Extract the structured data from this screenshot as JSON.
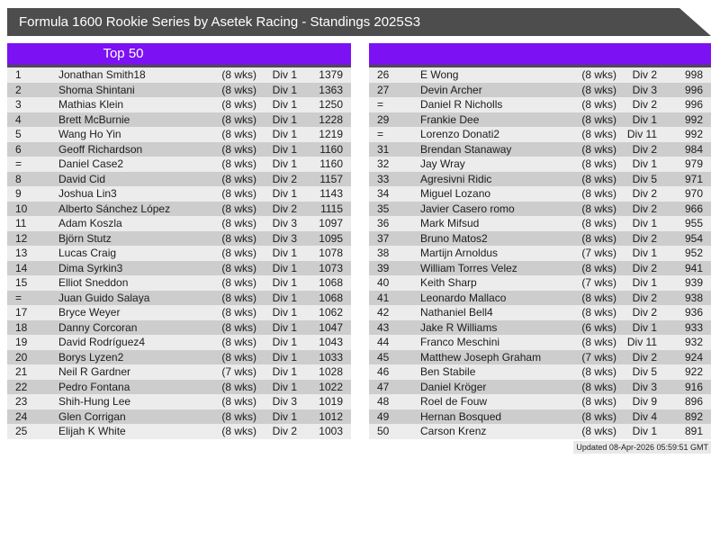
{
  "banner": {
    "title": "Formula 1600 Rookie Series by Asetek Racing - Standings 2025S3"
  },
  "colors": {
    "banner_bg": "#4d4d4d",
    "header_bg": "#7c11f3",
    "row_light": "#ececec",
    "row_dark": "#cdcdcd"
  },
  "tables": [
    {
      "header": "Top 50",
      "rows": [
        {
          "pos": "1",
          "name": "Jonathan Smith18",
          "weeks": "(8 wks)",
          "division": "Div 1",
          "points": "1379"
        },
        {
          "pos": "2",
          "name": "Shoma Shintani",
          "weeks": "(8 wks)",
          "division": "Div 1",
          "points": "1363"
        },
        {
          "pos": "3",
          "name": "Mathias Klein",
          "weeks": "(8 wks)",
          "division": "Div 1",
          "points": "1250"
        },
        {
          "pos": "4",
          "name": "Brett McBurnie",
          "weeks": "(8 wks)",
          "division": "Div 1",
          "points": "1228"
        },
        {
          "pos": "5",
          "name": "Wang Ho Yin",
          "weeks": "(8 wks)",
          "division": "Div 1",
          "points": "1219"
        },
        {
          "pos": "6",
          "name": "Geoff Richardson",
          "weeks": "(8 wks)",
          "division": "Div 1",
          "points": "1160"
        },
        {
          "pos": "=",
          "name": "Daniel Case2",
          "weeks": "(8 wks)",
          "division": "Div 1",
          "points": "1160"
        },
        {
          "pos": "8",
          "name": "David Cid",
          "weeks": "(8 wks)",
          "division": "Div 2",
          "points": "1157"
        },
        {
          "pos": "9",
          "name": "Joshua Lin3",
          "weeks": "(8 wks)",
          "division": "Div 1",
          "points": "1143"
        },
        {
          "pos": "10",
          "name": "Alberto Sánchez López",
          "weeks": "(8 wks)",
          "division": "Div 2",
          "points": "1115"
        },
        {
          "pos": "11",
          "name": "Adam Koszla",
          "weeks": "(8 wks)",
          "division": "Div 3",
          "points": "1097"
        },
        {
          "pos": "12",
          "name": "Björn Stutz",
          "weeks": "(8 wks)",
          "division": "Div 3",
          "points": "1095"
        },
        {
          "pos": "13",
          "name": "Lucas Craig",
          "weeks": "(8 wks)",
          "division": "Div 1",
          "points": "1078"
        },
        {
          "pos": "14",
          "name": "Dima Syrkin3",
          "weeks": "(8 wks)",
          "division": "Div 1",
          "points": "1073"
        },
        {
          "pos": "15",
          "name": "Elliot Sneddon",
          "weeks": "(8 wks)",
          "division": "Div 1",
          "points": "1068"
        },
        {
          "pos": "=",
          "name": "Juan Guido Salaya",
          "weeks": "(8 wks)",
          "division": "Div 1",
          "points": "1068"
        },
        {
          "pos": "17",
          "name": "Bryce Weyer",
          "weeks": "(8 wks)",
          "division": "Div 1",
          "points": "1062"
        },
        {
          "pos": "18",
          "name": "Danny Corcoran",
          "weeks": "(8 wks)",
          "division": "Div 1",
          "points": "1047"
        },
        {
          "pos": "19",
          "name": "David Rodríguez4",
          "weeks": "(8 wks)",
          "division": "Div 1",
          "points": "1043"
        },
        {
          "pos": "20",
          "name": "Borys Lyzen2",
          "weeks": "(8 wks)",
          "division": "Div 1",
          "points": "1033"
        },
        {
          "pos": "21",
          "name": "Neil R Gardner",
          "weeks": "(7 wks)",
          "division": "Div 1",
          "points": "1028"
        },
        {
          "pos": "22",
          "name": "Pedro Fontana",
          "weeks": "(8 wks)",
          "division": "Div 1",
          "points": "1022"
        },
        {
          "pos": "23",
          "name": "Shih-Hung Lee",
          "weeks": "(8 wks)",
          "division": "Div 3",
          "points": "1019"
        },
        {
          "pos": "24",
          "name": "Glen Corrigan",
          "weeks": "(8 wks)",
          "division": "Div 1",
          "points": "1012"
        },
        {
          "pos": "25",
          "name": "Elijah K White",
          "weeks": "(8 wks)",
          "division": "Div 2",
          "points": "1003"
        }
      ]
    },
    {
      "header": "",
      "rows": [
        {
          "pos": "26",
          "name": "E Wong",
          "weeks": "(8 wks)",
          "division": "Div 2",
          "points": "998"
        },
        {
          "pos": "27",
          "name": "Devin Archer",
          "weeks": "(8 wks)",
          "division": "Div 3",
          "points": "996"
        },
        {
          "pos": "=",
          "name": "Daniel R Nicholls",
          "weeks": "(8 wks)",
          "division": "Div 2",
          "points": "996"
        },
        {
          "pos": "29",
          "name": "Frankie Dee",
          "weeks": "(8 wks)",
          "division": "Div 1",
          "points": "992"
        },
        {
          "pos": "=",
          "name": "Lorenzo Donati2",
          "weeks": "(8 wks)",
          "division": "Div 11",
          "points": "992"
        },
        {
          "pos": "31",
          "name": "Brendan Stanaway",
          "weeks": "(8 wks)",
          "division": "Div 2",
          "points": "984"
        },
        {
          "pos": "32",
          "name": "Jay Wray",
          "weeks": "(8 wks)",
          "division": "Div 1",
          "points": "979"
        },
        {
          "pos": "33",
          "name": "Agresivni Ridic",
          "weeks": "(8 wks)",
          "division": "Div 5",
          "points": "971"
        },
        {
          "pos": "34",
          "name": "Miguel Lozano",
          "weeks": "(8 wks)",
          "division": "Div 2",
          "points": "970"
        },
        {
          "pos": "35",
          "name": "Javier Casero romo",
          "weeks": "(8 wks)",
          "division": "Div 2",
          "points": "966"
        },
        {
          "pos": "36",
          "name": "Mark Mifsud",
          "weeks": "(8 wks)",
          "division": "Div 1",
          "points": "955"
        },
        {
          "pos": "37",
          "name": "Bruno Matos2",
          "weeks": "(8 wks)",
          "division": "Div 2",
          "points": "954"
        },
        {
          "pos": "38",
          "name": "Martijn Arnoldus",
          "weeks": "(7 wks)",
          "division": "Div 1",
          "points": "952"
        },
        {
          "pos": "39",
          "name": "William Torres Velez",
          "weeks": "(8 wks)",
          "division": "Div 2",
          "points": "941"
        },
        {
          "pos": "40",
          "name": "Keith Sharp",
          "weeks": "(7 wks)",
          "division": "Div 1",
          "points": "939"
        },
        {
          "pos": "41",
          "name": "Leonardo Mallaco",
          "weeks": "(8 wks)",
          "division": "Div 2",
          "points": "938"
        },
        {
          "pos": "42",
          "name": "Nathaniel Bell4",
          "weeks": "(8 wks)",
          "division": "Div 2",
          "points": "936"
        },
        {
          "pos": "43",
          "name": "Jake R Williams",
          "weeks": "(6 wks)",
          "division": "Div 1",
          "points": "933"
        },
        {
          "pos": "44",
          "name": "Franco Meschini",
          "weeks": "(8 wks)",
          "division": "Div 11",
          "points": "932"
        },
        {
          "pos": "45",
          "name": "Matthew Joseph Graham",
          "weeks": "(7 wks)",
          "division": "Div 2",
          "points": "924"
        },
        {
          "pos": "46",
          "name": "Ben Stabile",
          "weeks": "(8 wks)",
          "division": "Div 5",
          "points": "922"
        },
        {
          "pos": "47",
          "name": "Daniel Kröger",
          "weeks": "(8 wks)",
          "division": "Div 3",
          "points": "916"
        },
        {
          "pos": "48",
          "name": "Roel de Fouw",
          "weeks": "(8 wks)",
          "division": "Div 9",
          "points": "896"
        },
        {
          "pos": "49",
          "name": "Hernan Bosqued",
          "weeks": "(8 wks)",
          "division": "Div 4",
          "points": "892"
        },
        {
          "pos": "50",
          "name": "Carson Krenz",
          "weeks": "(8 wks)",
          "division": "Div 1",
          "points": "891"
        }
      ]
    }
  ],
  "footer": {
    "updated": "Updated 08-Apr-2026 05:59:51 GMT"
  }
}
